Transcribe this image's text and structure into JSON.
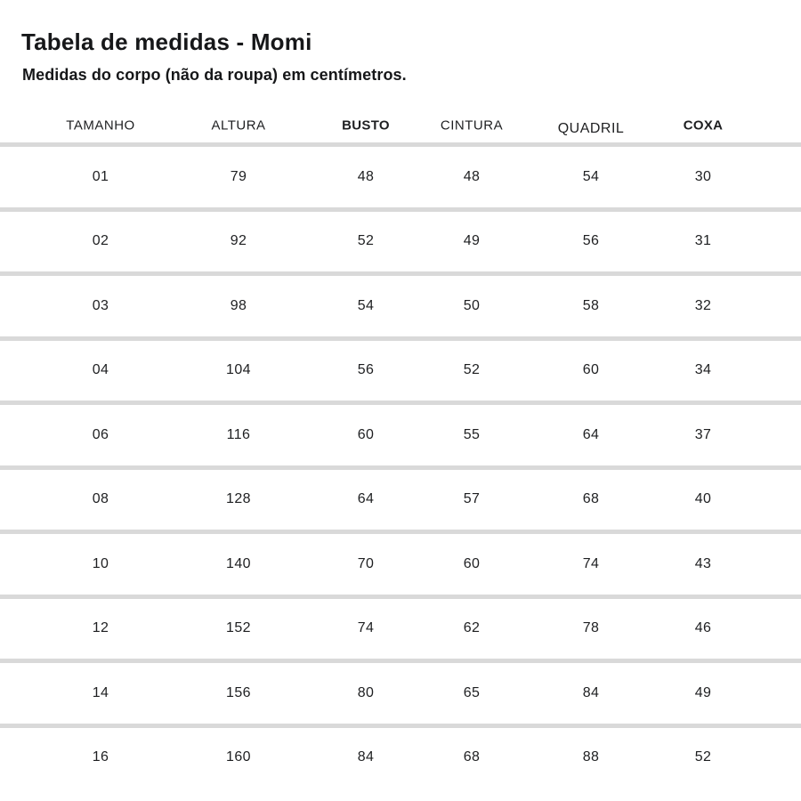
{
  "title": "Tabela de medidas - Momi",
  "subtitle": "Medidas do corpo (não da roupa) em centímetros.",
  "colors": {
    "background": "#ffffff",
    "text": "#1e1f21",
    "divider": "#d9d9d9"
  },
  "chart_data": {
    "type": "table",
    "title": "Tabela de medidas - Momi",
    "subtitle": "Medidas do corpo (não da roupa) em centímetros.",
    "columns": [
      "TAMANHO",
      "ALTURA",
      "BUSTO",
      "CINTURA",
      "QUADRIL",
      "COXA"
    ],
    "bold_columns": [
      "BUSTO",
      "COXA"
    ],
    "rows": [
      [
        "01",
        "79",
        "48",
        "48",
        "54",
        "30"
      ],
      [
        "02",
        "92",
        "52",
        "49",
        "56",
        "31"
      ],
      [
        "03",
        "98",
        "54",
        "50",
        "58",
        "32"
      ],
      [
        "04",
        "104",
        "56",
        "52",
        "60",
        "34"
      ],
      [
        "06",
        "116",
        "60",
        "55",
        "64",
        "37"
      ],
      [
        "08",
        "128",
        "64",
        "57",
        "68",
        "40"
      ],
      [
        "10",
        "140",
        "70",
        "60",
        "74",
        "43"
      ],
      [
        "12",
        "152",
        "74",
        "62",
        "78",
        "46"
      ],
      [
        "14",
        "156",
        "80",
        "65",
        "84",
        "49"
      ],
      [
        "16",
        "160",
        "84",
        "68",
        "88",
        "52"
      ]
    ]
  }
}
